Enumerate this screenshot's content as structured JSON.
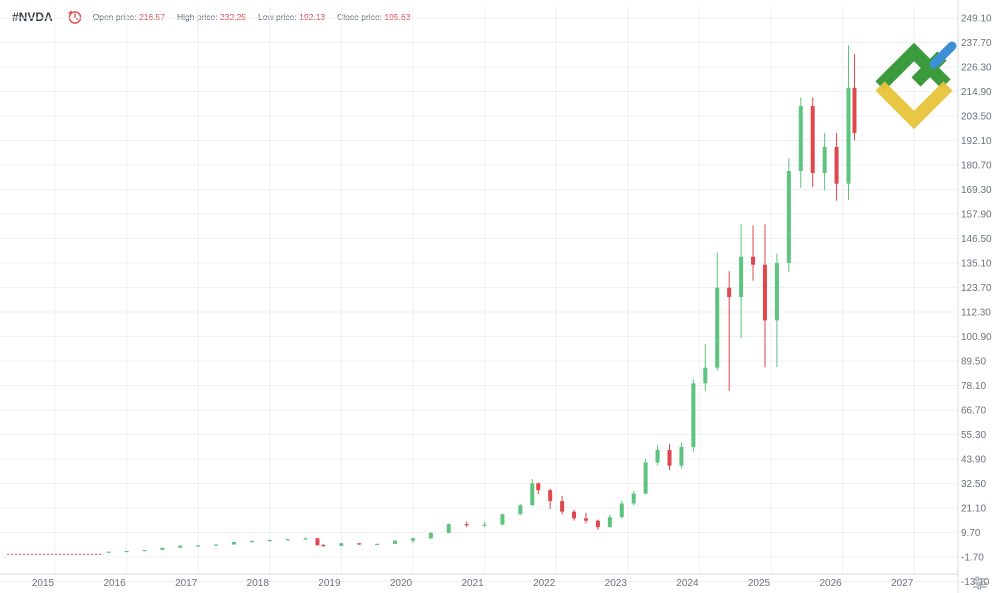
{
  "header": {
    "ticker": "#NVDA",
    "open_label": "Open price:",
    "open_value": "216.57",
    "high_label": "High price:",
    "high_value": "232.25",
    "low_label": "Low price:",
    "low_value": "192.13",
    "close_label": "Close price:",
    "close_value": "195.63"
  },
  "colors": {
    "up": "#5cc47f",
    "down": "#e0474c",
    "grid": "#eef0f3",
    "axis_text": "#6b7280",
    "logo_green": "#3a9a3c",
    "logo_yellow": "#e8c43a",
    "logo_blue": "#3f8fd6"
  },
  "icons": {
    "history": "clock-icon",
    "logo": "brand-logo",
    "settings": "settings-sliders-icon"
  },
  "chart_data": {
    "type": "candlestick",
    "title": "",
    "xlabel": "",
    "ylabel": "",
    "grid": true,
    "y_scale": "irregular",
    "y_ticks": [
      "249.10",
      "237.70",
      "226.30",
      "214.90",
      "203.50",
      "192.10",
      "180.70",
      "169.30",
      "157.90",
      "146.50",
      "135.10",
      "123.70",
      "112.30",
      "100.90",
      "89.50",
      "78.10",
      "66.70",
      "55.30",
      "43.90",
      "32.50",
      "21.10",
      "9.70",
      "-1.70",
      "-13.10"
    ],
    "x_ticks": [
      "2015",
      "2016",
      "2017",
      "2018",
      "2019",
      "2020",
      "2021",
      "2022",
      "2023",
      "2024",
      "2025",
      "2026",
      "2027"
    ],
    "x_range": [
      "2014-07",
      "2027-11"
    ],
    "pre_history": {
      "from": "2014-07",
      "to": "2015-11",
      "value": -0.5
    },
    "candles": [
      [
        "2015-12",
        0.6,
        0.8,
        0.5,
        0.8
      ],
      [
        "2016-03",
        0.8,
        1.1,
        0.7,
        1.1
      ],
      [
        "2016-06",
        1.1,
        1.6,
        1.0,
        1.6
      ],
      [
        "2016-09",
        1.6,
        2.6,
        1.5,
        2.6
      ],
      [
        "2016-12",
        2.6,
        3.7,
        2.5,
        3.6
      ],
      [
        "2017-03",
        3.6,
        3.9,
        3.4,
        3.7
      ],
      [
        "2017-06",
        3.7,
        4.2,
        3.5,
        4.1
      ],
      [
        "2017-09",
        4.1,
        5.4,
        4.0,
        5.3
      ],
      [
        "2017-12",
        5.3,
        5.9,
        5.0,
        5.8
      ],
      [
        "2018-03",
        5.8,
        6.4,
        5.5,
        6.2
      ],
      [
        "2018-06",
        6.2,
        6.8,
        6.0,
        6.6
      ],
      [
        "2018-09",
        6.6,
        7.3,
        6.3,
        7.0
      ],
      [
        "2018-11",
        7.0,
        7.1,
        3.6,
        3.8
      ],
      [
        "2018-12",
        3.8,
        4.4,
        3.3,
        3.5
      ],
      [
        "2019-03",
        3.5,
        4.9,
        3.4,
        4.7
      ],
      [
        "2019-06",
        4.7,
        4.9,
        3.9,
        4.1
      ],
      [
        "2019-09",
        4.1,
        4.6,
        3.9,
        4.4
      ],
      [
        "2019-12",
        4.4,
        6.1,
        4.3,
        5.9
      ],
      [
        "2020-03",
        5.9,
        7.3,
        4.8,
        7.0
      ],
      [
        "2020-06",
        7.0,
        9.8,
        6.8,
        9.5
      ],
      [
        "2020-09",
        9.5,
        14.0,
        9.3,
        13.6
      ],
      [
        "2020-12",
        13.6,
        14.8,
        12.2,
        13.1
      ],
      [
        "2021-03",
        13.1,
        14.5,
        12.4,
        13.4
      ],
      [
        "2021-06",
        13.4,
        18.5,
        13.0,
        18.2
      ],
      [
        "2021-09",
        18.2,
        23.0,
        18.0,
        22.4
      ],
      [
        "2021-11",
        22.4,
        34.6,
        22.1,
        32.6
      ],
      [
        "2021-12",
        32.6,
        32.9,
        27.5,
        29.4
      ],
      [
        "2022-02",
        29.4,
        30.1,
        20.6,
        24.3
      ],
      [
        "2022-04",
        24.3,
        26.8,
        18.0,
        19.4
      ],
      [
        "2022-06",
        19.4,
        20.2,
        15.2,
        16.3
      ],
      [
        "2022-08",
        16.3,
        18.9,
        14.0,
        15.2
      ],
      [
        "2022-10",
        15.2,
        15.7,
        11.0,
        12.2
      ],
      [
        "2022-12",
        12.2,
        18.0,
        12.0,
        16.8
      ],
      [
        "2023-02",
        16.8,
        24.6,
        16.2,
        23.2
      ],
      [
        "2023-04",
        23.2,
        29.0,
        22.4,
        27.8
      ],
      [
        "2023-06",
        27.8,
        44.0,
        27.4,
        42.3
      ],
      [
        "2023-08",
        42.3,
        50.2,
        41.0,
        48.1
      ],
      [
        "2023-10",
        48.1,
        50.9,
        38.8,
        40.8
      ],
      [
        "2023-12",
        40.8,
        51.5,
        39.6,
        49.5
      ],
      [
        "2024-02",
        49.5,
        80.9,
        47.3,
        79.1
      ],
      [
        "2024-04",
        79.1,
        97.4,
        75.6,
        86.4
      ],
      [
        "2024-06",
        86.4,
        140.0,
        85.0,
        123.6
      ],
      [
        "2024-08",
        123.6,
        131.3,
        75.6,
        119.3
      ],
      [
        "2024-10",
        119.3,
        153.1,
        100.2,
        138.0
      ],
      [
        "2024-12",
        138.0,
        152.6,
        126.9,
        134.3
      ],
      [
        "2025-02",
        134.3,
        153.1,
        86.6,
        108.4
      ],
      [
        "2025-04",
        108.4,
        139.4,
        86.6,
        135.1
      ],
      [
        "2025-06",
        135.1,
        183.9,
        130.8,
        177.9
      ],
      [
        "2025-08",
        177.9,
        212.2,
        170.1,
        208.1
      ],
      [
        "2025-10",
        208.1,
        212.2,
        170.4,
        177.0
      ],
      [
        "2025-12",
        177.0,
        195.6,
        168.9,
        189.1
      ],
      [
        "2026-02",
        189.1,
        195.6,
        164.1,
        172.0
      ],
      [
        "2026-04",
        172.0,
        236.5,
        164.4,
        216.6
      ],
      [
        "2026-05",
        216.6,
        232.3,
        192.1,
        195.6
      ]
    ]
  }
}
